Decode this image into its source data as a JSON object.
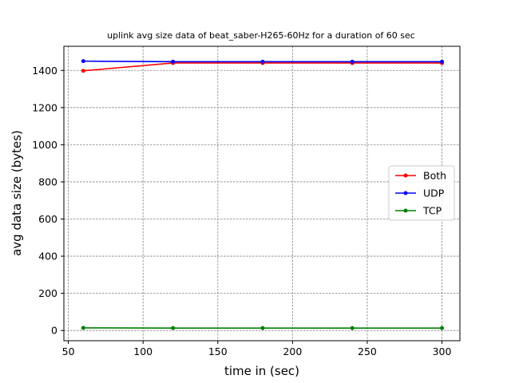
{
  "chart_data": {
    "type": "line",
    "title": "uplink avg size data of beat_saber-H265-60Hz for a duration of 60 sec",
    "xlabel": "time in (sec)",
    "ylabel": "avg data size (bytes)",
    "xlim": [
      47,
      312
    ],
    "ylim": [
      -55,
      1530
    ],
    "xticks": [
      50,
      100,
      150,
      200,
      250,
      300
    ],
    "yticks": [
      0,
      200,
      400,
      600,
      800,
      1000,
      1200,
      1400
    ],
    "grid": true,
    "legend_position": "center-right",
    "x": [
      60,
      120,
      180,
      240,
      300
    ],
    "series": [
      {
        "name": "Both",
        "color": "#ff0000",
        "values": [
          1398,
          1440,
          1440,
          1440,
          1440
        ]
      },
      {
        "name": "UDP",
        "color": "#0000ff",
        "values": [
          1450,
          1447,
          1447,
          1447,
          1447
        ]
      },
      {
        "name": "TCP",
        "color": "#008000",
        "values": [
          14,
          13,
          13,
          13,
          13
        ]
      }
    ]
  }
}
